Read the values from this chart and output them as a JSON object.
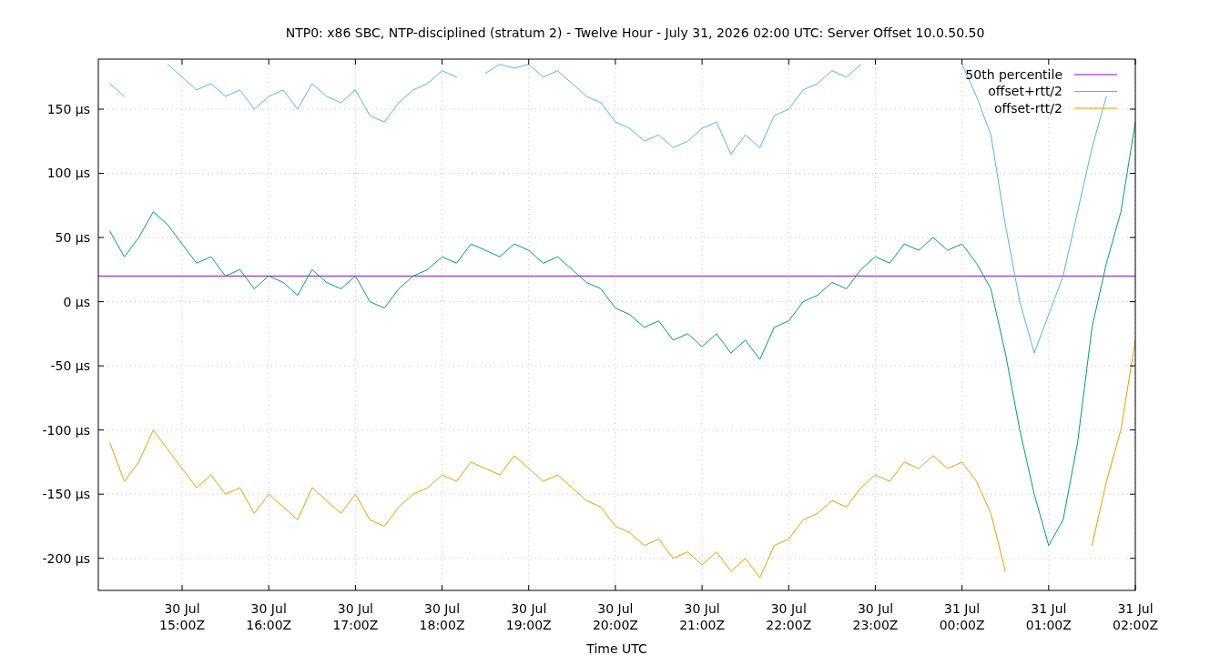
{
  "chart_data": {
    "type": "line",
    "title": "NTP0: x86 SBC, NTP-disciplined (stratum 2) - Twelve Hour - July 31, 2026 02:00 UTC: Server Offset 10.0.50.50",
    "xlabel": "Time UTC",
    "x": [
      "2026-07-30T14:10",
      "2026-07-30T14:20",
      "2026-07-30T14:30",
      "2026-07-30T14:40",
      "2026-07-30T14:50",
      "2026-07-30T15:00",
      "2026-07-30T15:10",
      "2026-07-30T15:20",
      "2026-07-30T15:30",
      "2026-07-30T15:40",
      "2026-07-30T15:50",
      "2026-07-30T16:00",
      "2026-07-30T16:10",
      "2026-07-30T16:20",
      "2026-07-30T16:30",
      "2026-07-30T16:40",
      "2026-07-30T16:50",
      "2026-07-30T17:00",
      "2026-07-30T17:10",
      "2026-07-30T17:20",
      "2026-07-30T17:30",
      "2026-07-30T17:40",
      "2026-07-30T17:50",
      "2026-07-30T18:00",
      "2026-07-30T18:10",
      "2026-07-30T18:20",
      "2026-07-30T18:30",
      "2026-07-30T18:40",
      "2026-07-30T18:50",
      "2026-07-30T19:00",
      "2026-07-30T19:10",
      "2026-07-30T19:20",
      "2026-07-30T19:30",
      "2026-07-30T19:40",
      "2026-07-30T19:50",
      "2026-07-30T20:00",
      "2026-07-30T20:10",
      "2026-07-30T20:20",
      "2026-07-30T20:30",
      "2026-07-30T20:40",
      "2026-07-30T20:50",
      "2026-07-30T21:00",
      "2026-07-30T21:10",
      "2026-07-30T21:20",
      "2026-07-30T21:30",
      "2026-07-30T21:40",
      "2026-07-30T21:50",
      "2026-07-30T22:00",
      "2026-07-30T22:10",
      "2026-07-30T22:20",
      "2026-07-30T22:30",
      "2026-07-30T22:40",
      "2026-07-30T22:50",
      "2026-07-30T23:00",
      "2026-07-30T23:10",
      "2026-07-30T23:20",
      "2026-07-30T23:30",
      "2026-07-30T23:40",
      "2026-07-30T23:50",
      "2026-07-31T00:00",
      "2026-07-31T00:10",
      "2026-07-31T00:20",
      "2026-07-31T00:30",
      "2026-07-31T00:40",
      "2026-07-31T00:50",
      "2026-07-31T01:00",
      "2026-07-31T01:10",
      "2026-07-31T01:20",
      "2026-07-31T01:30",
      "2026-07-31T01:40",
      "2026-07-31T01:50",
      "2026-07-31T02:00"
    ],
    "series": [
      {
        "name": "50th percentile",
        "color": "#9400d3",
        "x": [
          "2026-07-30T14:02",
          "2026-07-31T02:00"
        ],
        "values": [
          20,
          20
        ]
      },
      {
        "color": "#009e73",
        "values": [
          55,
          35,
          50,
          70,
          60,
          45,
          30,
          35,
          20,
          25,
          10,
          20,
          15,
          5,
          25,
          15,
          10,
          20,
          0,
          -5,
          10,
          20,
          25,
          35,
          30,
          45,
          40,
          35,
          45,
          40,
          30,
          35,
          25,
          15,
          10,
          -5,
          -10,
          -20,
          -15,
          -30,
          -25,
          -35,
          -25,
          -40,
          -30,
          -45,
          -20,
          -15,
          0,
          5,
          15,
          10,
          25,
          35,
          30,
          45,
          40,
          50,
          40,
          45,
          30,
          10,
          -40,
          -100,
          -150,
          -190,
          -170,
          -110,
          -20,
          30,
          70,
          140
        ]
      },
      {
        "name": "offset+rtt/2",
        "color": "#56b4e9",
        "values": [
          170,
          160,
          null,
          null,
          185,
          175,
          165,
          170,
          160,
          165,
          150,
          160,
          165,
          150,
          170,
          160,
          155,
          165,
          145,
          140,
          155,
          165,
          170,
          180,
          175,
          null,
          178,
          185,
          182,
          185,
          175,
          180,
          170,
          160,
          155,
          140,
          135,
          125,
          130,
          120,
          125,
          135,
          140,
          115,
          130,
          120,
          145,
          150,
          165,
          170,
          180,
          175,
          185,
          null,
          null,
          null,
          null,
          null,
          null,
          185,
          160,
          130,
          60,
          0,
          -40,
          -10,
          20,
          70,
          120,
          160,
          null,
          null
        ]
      },
      {
        "name": "offset-rtt/2",
        "color": "#e69f00",
        "values": [
          -110,
          -140,
          -125,
          -100,
          -115,
          -130,
          -145,
          -135,
          -150,
          -145,
          -165,
          -150,
          -160,
          -170,
          -145,
          -155,
          -165,
          -150,
          -170,
          -175,
          -160,
          -150,
          -145,
          -135,
          -140,
          -125,
          -130,
          -135,
          -120,
          -130,
          -140,
          -135,
          -145,
          -155,
          -160,
          -175,
          -180,
          -190,
          -185,
          -200,
          -195,
          -205,
          -195,
          -210,
          -200,
          -215,
          -190,
          -185,
          -170,
          -165,
          -155,
          -160,
          -145,
          -135,
          -140,
          -125,
          -130,
          -120,
          -130,
          -125,
          -140,
          -165,
          -210,
          null,
          null,
          null,
          null,
          null,
          -190,
          -140,
          -100,
          -30
        ]
      }
    ],
    "xlim": [
      "2026-07-30T14:02",
      "2026-07-31T02:00"
    ],
    "xticks": [
      {
        "value": "2026-07-30T15:00",
        "label": "30 Jul\n15:00Z"
      },
      {
        "value": "2026-07-30T16:00",
        "label": "30 Jul\n16:00Z"
      },
      {
        "value": "2026-07-30T17:00",
        "label": "30 Jul\n17:00Z"
      },
      {
        "value": "2026-07-30T18:00",
        "label": "30 Jul\n18:00Z"
      },
      {
        "value": "2026-07-30T19:00",
        "label": "30 Jul\n19:00Z"
      },
      {
        "value": "2026-07-30T20:00",
        "label": "30 Jul\n20:00Z"
      },
      {
        "value": "2026-07-30T21:00",
        "label": "30 Jul\n21:00Z"
      },
      {
        "value": "2026-07-30T22:00",
        "label": "30 Jul\n22:00Z"
      },
      {
        "value": "2026-07-30T23:00",
        "label": "30 Jul\n23:00Z"
      },
      {
        "value": "2026-07-31T00:00",
        "label": "31 Jul\n00:00Z"
      },
      {
        "value": "2026-07-31T01:00",
        "label": "31 Jul\n01:00Z"
      },
      {
        "value": "2026-07-31T02:00",
        "label": "31 Jul\n02:00Z"
      }
    ],
    "ylim": [
      -225,
      189
    ],
    "yticks": [
      {
        "value": -200,
        "label": "-200 µs"
      },
      {
        "value": -150,
        "label": "-150 µs"
      },
      {
        "value": -100,
        "label": "-100 µs"
      },
      {
        "value": -50,
        "label": "-50 µs"
      },
      {
        "value": 0,
        "label": "0 µs"
      },
      {
        "value": 50,
        "label": "50 µs"
      },
      {
        "value": 100,
        "label": "100 µs"
      },
      {
        "value": 150,
        "label": "150 µs"
      }
    ],
    "grid": true,
    "legend": "top right",
    "line_style": "solid"
  }
}
